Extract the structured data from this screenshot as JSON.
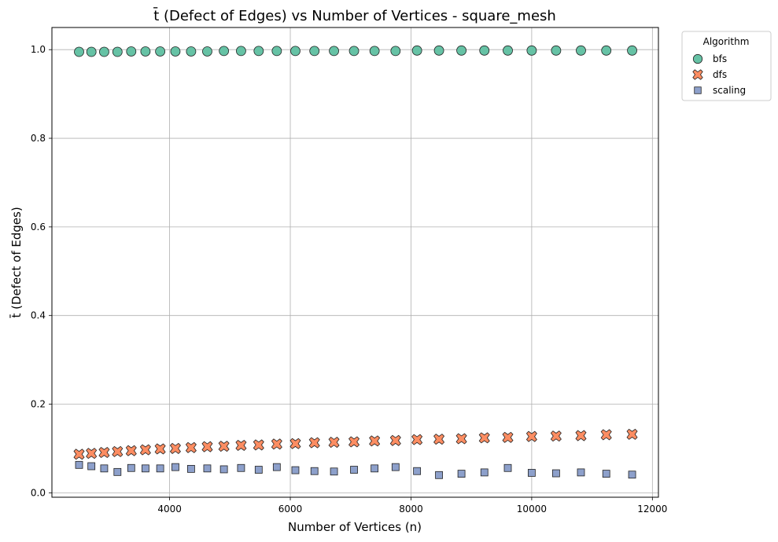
{
  "chart_data": {
    "type": "scatter",
    "title": "t̄ (Defect of Edges) vs Number of Vertices - square_mesh",
    "xlabel": "Number of Vertices (n)",
    "ylabel": "t̄ (Defect of Edges)",
    "xlim": [
      2050,
      12100
    ],
    "ylim": [
      -0.01,
      1.05
    ],
    "xticks": [
      4000,
      6000,
      8000,
      10000,
      12000
    ],
    "yticks": [
      0.0,
      0.2,
      0.4,
      0.6,
      0.8,
      1.0
    ],
    "xtick_labels": [
      "4000",
      "6000",
      "8000",
      "10000",
      "12000"
    ],
    "ytick_labels": [
      "0.0",
      "0.2",
      "0.4",
      "0.6",
      "0.8",
      "1.0"
    ],
    "grid": true,
    "legend": {
      "title": "Algorithm",
      "placement": "outside-top-right"
    },
    "x": [
      2500,
      2704,
      2916,
      3136,
      3364,
      3600,
      3844,
      4096,
      4356,
      4624,
      4900,
      5184,
      5476,
      5776,
      6084,
      6400,
      6724,
      7056,
      7396,
      7744,
      8100,
      8464,
      8836,
      9216,
      9604,
      10000,
      10404,
      10816,
      11236,
      11664
    ],
    "series": [
      {
        "name": "bfs",
        "marker": "circle",
        "color": "#66c2a5",
        "values": [
          0.995,
          0.995,
          0.995,
          0.995,
          0.996,
          0.996,
          0.996,
          0.996,
          0.996,
          0.996,
          0.997,
          0.997,
          0.997,
          0.997,
          0.997,
          0.997,
          0.997,
          0.997,
          0.997,
          0.997,
          0.998,
          0.998,
          0.998,
          0.998,
          0.998,
          0.998,
          0.998,
          0.998,
          0.998,
          0.998
        ]
      },
      {
        "name": "dfs",
        "marker": "x",
        "color": "#fc8d62",
        "values": [
          0.087,
          0.089,
          0.091,
          0.093,
          0.095,
          0.097,
          0.099,
          0.1,
          0.102,
          0.104,
          0.105,
          0.107,
          0.108,
          0.11,
          0.111,
          0.113,
          0.114,
          0.115,
          0.117,
          0.118,
          0.12,
          0.121,
          0.122,
          0.124,
          0.125,
          0.127,
          0.128,
          0.129,
          0.131,
          0.132
        ]
      },
      {
        "name": "scaling",
        "marker": "square",
        "color": "#8da0cb",
        "values": [
          0.063,
          0.06,
          0.055,
          0.047,
          0.056,
          0.055,
          0.055,
          0.058,
          0.054,
          0.055,
          0.053,
          0.056,
          0.052,
          0.058,
          0.051,
          0.049,
          0.048,
          0.052,
          0.055,
          0.058,
          0.049,
          0.04,
          0.043,
          0.046,
          0.056,
          0.045,
          0.044,
          0.046,
          0.043,
          0.041
        ]
      }
    ]
  }
}
